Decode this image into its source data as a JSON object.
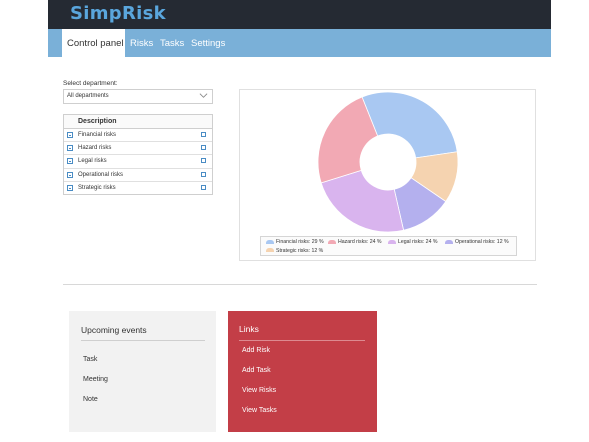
{
  "app": {
    "logo": "SimpRisk"
  },
  "nav": {
    "tabs": [
      "Control panel",
      "Risks",
      "Tasks",
      "Settings"
    ],
    "active": "Control panel"
  },
  "filter": {
    "label": "Select department:",
    "selected": "All departments"
  },
  "description_table": {
    "header": "Description",
    "rows": [
      "Financial risks",
      "Hazard risks",
      "Legal risks",
      "Operational risks",
      "Strategic risks"
    ]
  },
  "chart_data": {
    "type": "pie",
    "donut": true,
    "categories": [
      "Financial risks",
      "Hazard risks",
      "Legal risks",
      "Operational risks",
      "Strategic risks"
    ],
    "values": [
      29,
      24,
      24,
      12,
      12
    ],
    "legend_labels": [
      "Financial risks: 29 %",
      "Hazard risks: 24 %",
      "Legal risks: 24 %",
      "Operational risks: 12 %",
      "Strategic risks: 12 %"
    ],
    "colors": [
      "#a9c8f2",
      "#f2a9b4",
      "#d9b4ee",
      "#b4b0ee",
      "#f5d3b0"
    ],
    "legend_position": "bottom"
  },
  "upcoming_events": {
    "title": "Upcoming events",
    "items": [
      "Task",
      "Meeting",
      "Note"
    ]
  },
  "links": {
    "title": "Links",
    "items": [
      "Add Risk",
      "Add Task",
      "View Risks",
      "View Tasks"
    ]
  }
}
